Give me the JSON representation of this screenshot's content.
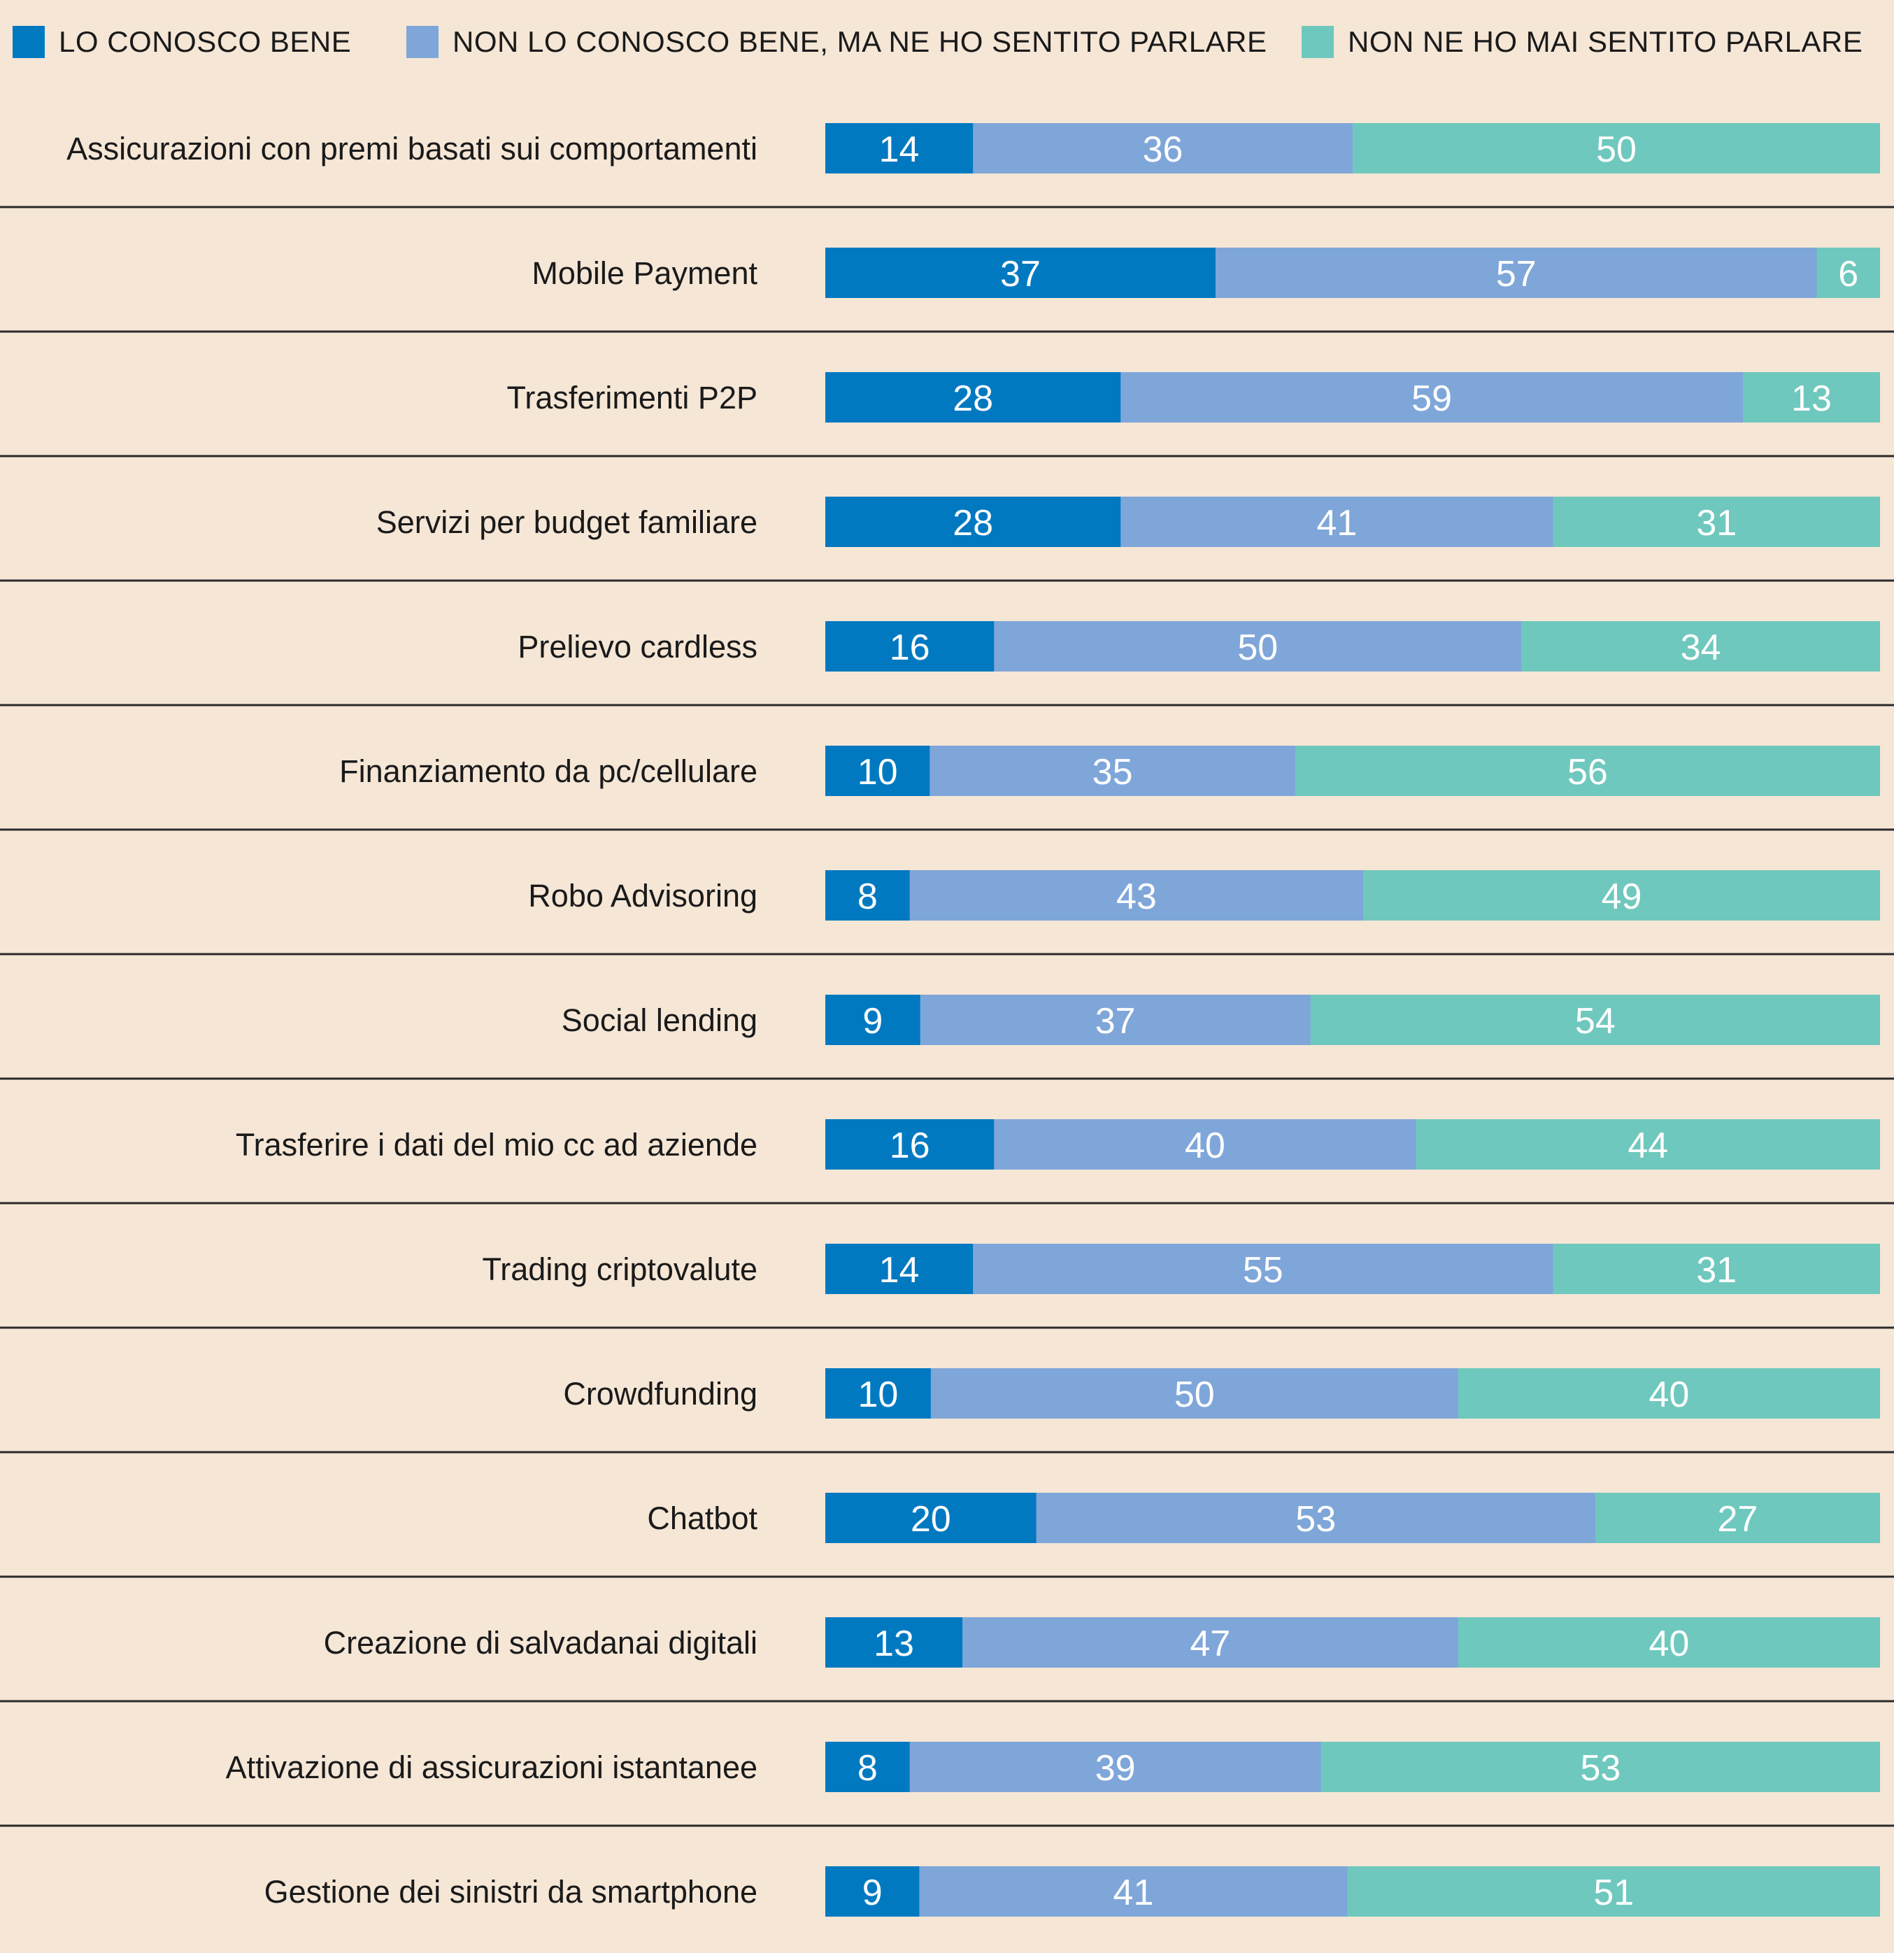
{
  "legend": {
    "items": [
      {
        "label": "LO CONOSCO BENE",
        "color": "#0079c1"
      },
      {
        "label": "NON LO CONOSCO BENE, MA NE HO SENTITO PARLARE",
        "color": "#7fa6d9"
      },
      {
        "label": "NON NE HO MAI SENTITO PARLARE",
        "color": "#6fc8bd"
      }
    ],
    "placement": "top"
  },
  "chart_data": {
    "type": "bar",
    "orientation": "horizontal",
    "stacked": true,
    "normalized": true,
    "grid": false,
    "categories": [
      "Assicurazioni con premi basati sui comportamenti",
      "Mobile Payment",
      "Trasferimenti P2P",
      "Servizi per budget familiare",
      "Prelievo cardless",
      "Finanziamento da pc/cellulare",
      "Robo Advisoring",
      "Social lending",
      "Trasferire i dati del mio cc ad aziende",
      "Trading criptovalute",
      "Crowdfunding",
      "Chatbot",
      "Creazione di salvadanai digitali",
      "Attivazione di assicurazioni istantanee",
      "Gestione dei sinistri da smartphone"
    ],
    "series": [
      {
        "name": "LO CONOSCO BENE",
        "color": "#0079c1",
        "values": [
          14,
          37,
          28,
          28,
          16,
          10,
          8,
          9,
          16,
          14,
          10,
          20,
          13,
          8,
          9
        ]
      },
      {
        "name": "NON LO CONOSCO BENE, MA NE HO SENTITO PARLARE",
        "color": "#7fa6d9",
        "values": [
          36,
          57,
          59,
          41,
          50,
          35,
          43,
          37,
          40,
          55,
          50,
          53,
          47,
          39,
          41
        ]
      },
      {
        "name": "NON NE HO MAI SENTITO PARLARE",
        "color": "#6fc8bd",
        "values": [
          50,
          6,
          13,
          31,
          34,
          56,
          49,
          54,
          44,
          31,
          40,
          27,
          40,
          53,
          51
        ]
      }
    ],
    "divider_color": "#2a2a2a"
  }
}
